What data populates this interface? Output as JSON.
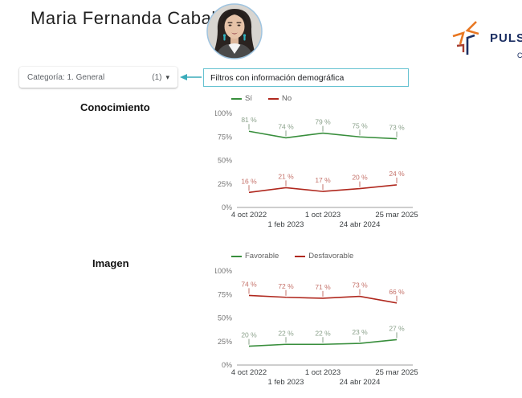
{
  "page": {
    "title": "Maria Fernanda Cabal"
  },
  "logo": {
    "text": "PULSO",
    "subtext": "C"
  },
  "toolbar": {
    "category": {
      "label": "Categoría: 1. General",
      "count": "(1)",
      "caret": "▾"
    },
    "callout": "Filtros con información demográfica"
  },
  "accent_colors": {
    "teal": "#3aacba",
    "green": "#388e3c",
    "red": "#b0281e",
    "navy": "#1c2f63",
    "orange": "#e87722"
  },
  "chart_data": [
    {
      "type": "line",
      "section_title": "Conocimiento",
      "x": [
        "4 oct 2022",
        "1 feb 2023",
        "1 oct 2023",
        "24 abr 2024",
        "25 mar 2025"
      ],
      "series": [
        {
          "name": "Sí",
          "color": "#388e3c",
          "label_color": "#8aa08a",
          "values": [
            81,
            74,
            79,
            75,
            73
          ]
        },
        {
          "name": "No",
          "color": "#b0281e",
          "label_color": "#c47068",
          "values": [
            16,
            21,
            17,
            20,
            24
          ]
        }
      ],
      "ylim": [
        0,
        100
      ],
      "yticks": [
        "100%",
        "75%",
        "50%",
        "25%",
        "0%"
      ],
      "value_suffix": " %",
      "grid": false,
      "legend_position": "top-left"
    },
    {
      "type": "line",
      "section_title": "Imagen",
      "x": [
        "4 oct 2022",
        "1 feb 2023",
        "1 oct 2023",
        "24 abr 2024",
        "25 mar 2025"
      ],
      "series": [
        {
          "name": "Favorable",
          "color": "#388e3c",
          "label_color": "#8aa08a",
          "values": [
            20,
            22,
            22,
            23,
            27
          ]
        },
        {
          "name": "Desfavorable",
          "color": "#b0281e",
          "label_color": "#c47068",
          "values": [
            74,
            72,
            71,
            73,
            66
          ]
        }
      ],
      "ylim": [
        0,
        100
      ],
      "yticks": [
        "100%",
        "75%",
        "50%",
        "25%",
        "0%"
      ],
      "value_suffix": " %",
      "grid": false,
      "legend_position": "top-left"
    }
  ]
}
